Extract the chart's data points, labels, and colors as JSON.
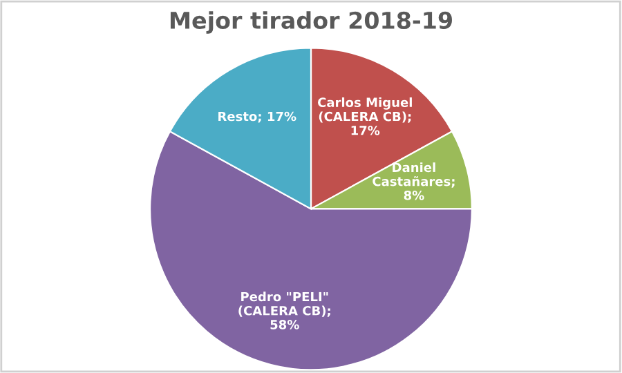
{
  "chart_data": {
    "type": "pie",
    "title": "Mejor tirador 2018-19",
    "categories": [
      "Carlos Miguel\n(CALERA CB);\n17%",
      "Daniel\nCastañares;\n8%",
      "Pedro \"PELI\"\n(CALERA CB);\n58%",
      "Resto; 17%"
    ],
    "values": [
      17,
      8,
      58,
      17
    ],
    "colors": [
      "#c0504d",
      "#9bbb59",
      "#8064a2",
      "#4bacc6"
    ]
  }
}
